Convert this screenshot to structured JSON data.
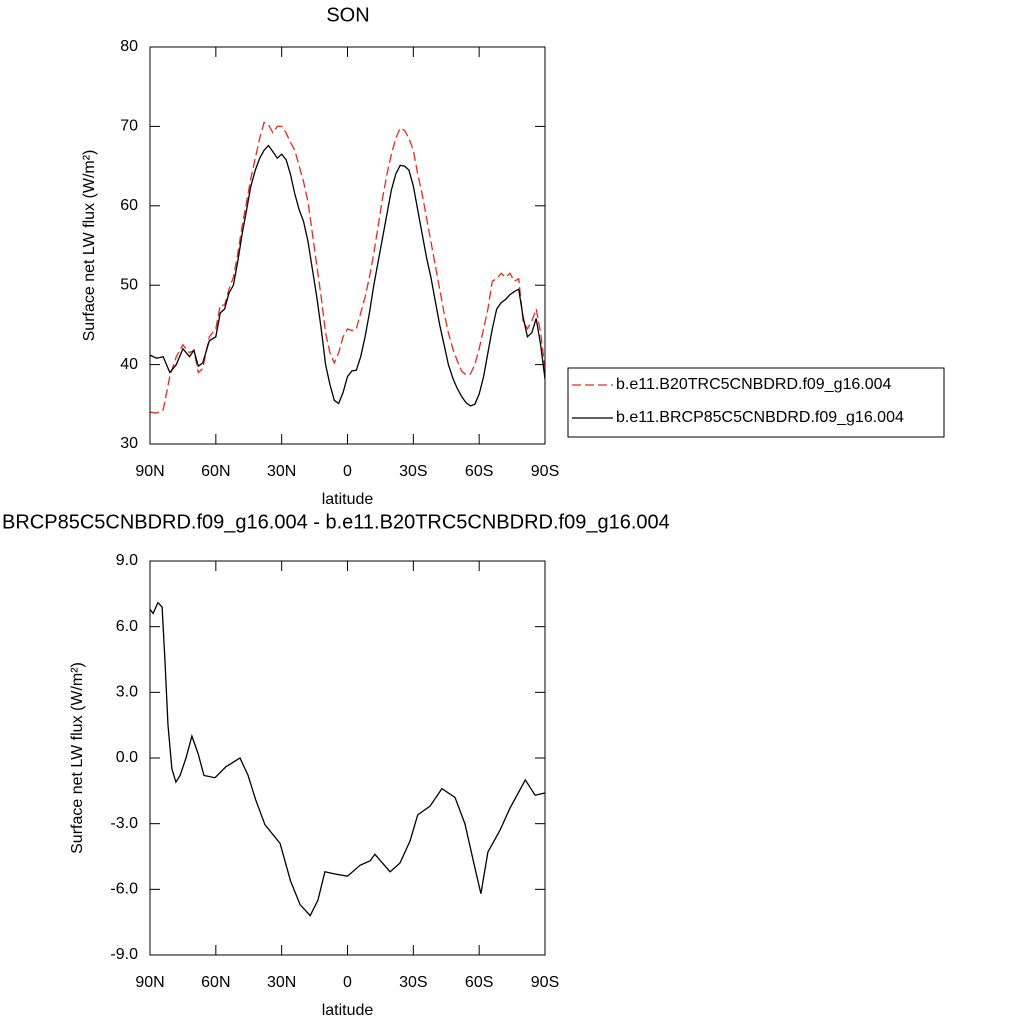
{
  "chart_data": [
    {
      "type": "line",
      "title": "SON",
      "xlabel": "latitude",
      "ylabel": "Surface net LW flux (W/m²)",
      "x": [
        90,
        87,
        84,
        81,
        78,
        75,
        72,
        70,
        68,
        66,
        63,
        60,
        58,
        56,
        54,
        52,
        50,
        48,
        46,
        44,
        42,
        40,
        38,
        36,
        34,
        32,
        30,
        28,
        26,
        24,
        22,
        20,
        18,
        16,
        14,
        12,
        10,
        8,
        6,
        4,
        2,
        0,
        -2,
        -4,
        -6,
        -8,
        -10,
        -12,
        -14,
        -16,
        -18,
        -20,
        -22,
        -24,
        -26,
        -28,
        -30,
        -32,
        -34,
        -36,
        -38,
        -40,
        -42,
        -44,
        -46,
        -48,
        -50,
        -52,
        -54,
        -56,
        -58,
        -60,
        -62,
        -64,
        -66,
        -68,
        -70,
        -72,
        -74,
        -76,
        -78,
        -80,
        -82,
        -84,
        -86,
        -88,
        -90
      ],
      "series": [
        {
          "name": "b.e11.B20TRC5CNBDRD.f09_g16.004",
          "color": "#e8291f",
          "line_style": "dashed",
          "values": [
            34.0,
            33.9,
            34.3,
            38.5,
            41.0,
            42.5,
            41.5,
            41.8,
            39.0,
            39.5,
            43.5,
            44.5,
            47.5,
            47.5,
            49.5,
            51,
            54,
            57.5,
            60.5,
            63.5,
            66,
            68.5,
            70.5,
            70.2,
            69.2,
            70.0,
            70.0,
            69.2,
            68.0,
            67.0,
            65.0,
            63.0,
            60.5,
            56.5,
            52.5,
            48.5,
            44.0,
            41.5,
            40.2,
            41.5,
            43.5,
            44.5,
            44.3,
            44.5,
            46.5,
            48.5,
            51,
            54,
            57.5,
            61,
            64,
            66.5,
            68.5,
            69.8,
            69.5,
            68.5,
            67,
            64,
            61.5,
            58.5,
            55.5,
            52.5,
            49.5,
            46.5,
            44,
            42,
            40.5,
            39.2,
            38.7,
            38.8,
            40,
            42,
            44.5,
            47,
            50.5,
            50.8,
            51.5,
            51.0,
            51.5,
            50.5,
            50.8,
            45.5,
            44.5,
            45.5,
            47,
            44,
            39.5
          ]
        },
        {
          "name": "b.e11.BRCP85C5CNBDRD.f09_g16.004",
          "color": "#000000",
          "line_style": "solid",
          "values": [
            41.2,
            40.8,
            41.0,
            39.0,
            40.0,
            42.0,
            41.0,
            41.8,
            39.8,
            40.2,
            43.0,
            43.5,
            46.5,
            47.0,
            49.0,
            50.0,
            53,
            56.5,
            59.5,
            62.5,
            64.5,
            66.0,
            67.0,
            67.6,
            66.8,
            66.0,
            66.5,
            65.8,
            64.0,
            61.5,
            59.5,
            58.0,
            55.5,
            52.0,
            48.5,
            44.5,
            40.0,
            37.5,
            35.5,
            35.1,
            36.5,
            38.5,
            39.2,
            39.3,
            41,
            43.5,
            46.5,
            50,
            53,
            56,
            59,
            62,
            64,
            65.1,
            65.0,
            64.5,
            62.5,
            59.5,
            56.5,
            53.5,
            51,
            48,
            45,
            42.5,
            40,
            38.3,
            37,
            36,
            35.2,
            34.8,
            35.0,
            36.3,
            38.5,
            41.5,
            44.5,
            47,
            47.8,
            48.2,
            48.8,
            49.2,
            49.5,
            46,
            43.5,
            44,
            45.8,
            42.5,
            38.2
          ]
        }
      ],
      "xlim": [
        90,
        -90
      ],
      "xticks": [
        {
          "value": 90,
          "label": "90N"
        },
        {
          "value": 60,
          "label": "60N"
        },
        {
          "value": 30,
          "label": "30N"
        },
        0,
        {
          "value": -30,
          "label": "30S"
        },
        {
          "value": -60,
          "label": "60S"
        },
        {
          "value": -90,
          "label": "90S"
        }
      ],
      "ylim": [
        30,
        80
      ],
      "yticks": [
        30,
        40,
        50,
        60,
        70,
        80
      ],
      "legend": "right"
    },
    {
      "type": "line",
      "title": "BRCP85C5CNBDRD.f09_g16.004 - b.e11.B20TRC5CNBDRD.f09_g16.004",
      "xlabel": "latitude",
      "ylabel": "Surface net LW flux (W/m²)",
      "x": [
        90,
        88.6,
        86.4,
        84.5,
        83.2,
        81.8,
        80,
        78.2,
        76.3,
        73.6,
        70.9,
        68.1,
        65.4,
        60.4,
        55.4,
        49,
        45.3,
        41.9,
        37.6,
        30.7,
        26,
        21.6,
        17,
        13.5,
        10.3,
        5.7,
        0,
        -5.7,
        -10.3,
        -12.5,
        -19.4,
        -23.9,
        -28.5,
        -32,
        -37.6,
        -43,
        -49,
        -53.5,
        -58,
        -60.8,
        -64,
        -69.5,
        -74,
        -81,
        -85.5,
        -90
      ],
      "series": [
        {
          "color": "#000000",
          "line_style": "solid",
          "values": [
            6.8,
            6.6,
            7.1,
            6.9,
            4.5,
            1.5,
            -0.5,
            -1.1,
            -0.8,
            0.0,
            1.0,
            0.2,
            -0.8,
            -0.9,
            -0.4,
            0.0,
            -0.8,
            -1.9,
            -3.05,
            -3.9,
            -5.6,
            -6.7,
            -7.2,
            -6.5,
            -5.2,
            -5.3,
            -5.4,
            -4.9,
            -4.7,
            -4.4,
            -5.2,
            -4.8,
            -3.8,
            -2.6,
            -2.2,
            -1.4,
            -1.8,
            -3.0,
            -5.0,
            -6.2,
            -4.3,
            -3.3,
            -2.3,
            -1.0,
            -1.7,
            -1.6
          ]
        }
      ],
      "xlim": [
        90,
        -90
      ],
      "xticks": [
        {
          "value": 90,
          "label": "90N"
        },
        {
          "value": 60,
          "label": "60N"
        },
        {
          "value": 30,
          "label": "30N"
        },
        0,
        {
          "value": -30,
          "label": "30S"
        },
        {
          "value": -60,
          "label": "60S"
        },
        {
          "value": -90,
          "label": "90S"
        }
      ],
      "ylim": [
        -9,
        9
      ],
      "yticks": [
        {
          "value": -9,
          "label": "-9.0"
        },
        {
          "value": -6,
          "label": "-6.0"
        },
        {
          "value": -3,
          "label": "-3.0"
        },
        {
          "value": 0,
          "label": "0.0"
        },
        {
          "value": 3,
          "label": "3.0"
        },
        {
          "value": 6,
          "label": "6.0"
        },
        {
          "value": 9,
          "label": "9.0"
        }
      ]
    }
  ]
}
